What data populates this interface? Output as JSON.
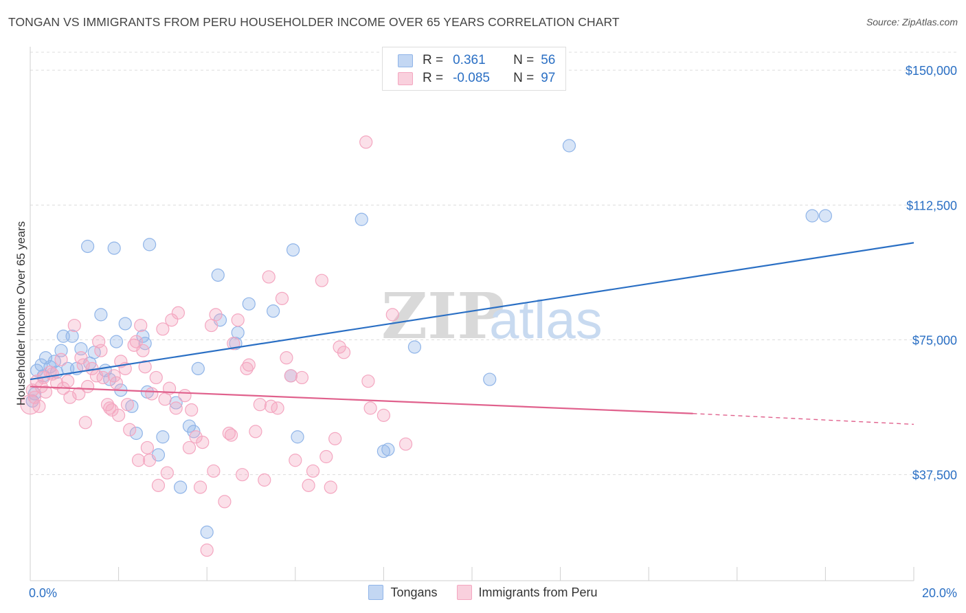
{
  "title": "TONGAN VS IMMIGRANTS FROM PERU HOUSEHOLDER INCOME OVER 65 YEARS CORRELATION CHART",
  "source": "Source: ZipAtlas.com",
  "watermark": {
    "zip": "ZIP",
    "atlas": "atlas"
  },
  "legend": {
    "rows": [
      {
        "r_label": "R =",
        "r_value": "0.361",
        "n_label": "N =",
        "n_value": "56",
        "color": "#8fb4e8"
      },
      {
        "r_label": "R =",
        "r_value": "-0.085",
        "n_label": "N =",
        "n_value": "97",
        "color": "#f4a6c0"
      }
    ]
  },
  "bottom_legend": [
    "Tongans",
    "Immigrants from Peru"
  ],
  "chart_data": {
    "type": "scatter",
    "xlabel": "",
    "ylabel": "Householder Income Over 65 years",
    "xlim": [
      0,
      20
    ],
    "ylim": [
      8000,
      155000
    ],
    "x_tick_labels": {
      "min": "0.0%",
      "max": "20.0%"
    },
    "y_ticks": [
      37500,
      75000,
      112500,
      150000
    ],
    "y_tick_labels": [
      "$37,500",
      "$75,000",
      "$112,500",
      "$150,000"
    ],
    "grid": true,
    "series": [
      {
        "name": "Tongans",
        "color": "#8fb4e8",
        "line_color": "#2a6fc4",
        "trend": {
          "x": [
            0,
            20
          ],
          "y": [
            64000,
            102000
          ]
        },
        "points": [
          [
            0.05,
            58000
          ],
          [
            0.15,
            66500
          ],
          [
            0.25,
            68000
          ],
          [
            0.35,
            70000
          ],
          [
            0.45,
            67500
          ],
          [
            0.55,
            69000
          ],
          [
            0.7,
            72000
          ],
          [
            0.75,
            76000
          ],
          [
            0.85,
            67000
          ],
          [
            0.95,
            76000
          ],
          [
            1.05,
            67000
          ],
          [
            1.15,
            72500
          ],
          [
            1.35,
            68500
          ],
          [
            1.45,
            71500
          ],
          [
            1.6,
            82000
          ],
          [
            1.7,
            66500
          ],
          [
            1.8,
            64000
          ],
          [
            1.95,
            74500
          ],
          [
            2.05,
            61000
          ],
          [
            2.15,
            79500
          ],
          [
            2.3,
            56500
          ],
          [
            2.4,
            49000
          ],
          [
            2.55,
            76000
          ],
          [
            2.6,
            74000
          ],
          [
            2.65,
            60500
          ],
          [
            2.9,
            43000
          ],
          [
            3.0,
            48000
          ],
          [
            3.3,
            57500
          ],
          [
            3.4,
            34000
          ],
          [
            3.6,
            51000
          ],
          [
            3.7,
            49500
          ],
          [
            3.8,
            67000
          ],
          [
            4.0,
            21500
          ],
          [
            4.25,
            93000
          ],
          [
            4.3,
            80500
          ],
          [
            4.65,
            74000
          ],
          [
            4.7,
            77000
          ],
          [
            4.95,
            85000
          ],
          [
            5.5,
            83000
          ],
          [
            5.9,
            65000
          ],
          [
            5.95,
            100000
          ],
          [
            6.05,
            48000
          ],
          [
            1.3,
            101000
          ],
          [
            1.9,
            100500
          ],
          [
            2.7,
            101500
          ],
          [
            7.5,
            108500
          ],
          [
            8.0,
            44000
          ],
          [
            8.1,
            44500
          ],
          [
            8.7,
            73000
          ],
          [
            10.4,
            64000
          ],
          [
            12.2,
            129000
          ],
          [
            17.7,
            109500
          ],
          [
            18.0,
            109500
          ],
          [
            0.1,
            60000
          ],
          [
            0.3,
            65000
          ],
          [
            0.6,
            66000
          ]
        ]
      },
      {
        "name": "Immigrants from Peru",
        "color": "#f4a6c0",
        "line_color": "#e0608c",
        "trend": {
          "x": [
            0,
            15
          ],
          "y": [
            62000,
            54500
          ]
        },
        "trend_dashed": {
          "x": [
            15,
            20
          ],
          "y": [
            54500,
            51500
          ]
        },
        "points": [
          [
            0.0,
            57000
          ],
          [
            0.05,
            61000
          ],
          [
            0.1,
            59000
          ],
          [
            0.15,
            63500
          ],
          [
            0.2,
            56500
          ],
          [
            0.25,
            62000
          ],
          [
            0.3,
            64500
          ],
          [
            0.35,
            60500
          ],
          [
            0.45,
            66000
          ],
          [
            0.5,
            65500
          ],
          [
            0.6,
            63000
          ],
          [
            0.7,
            69500
          ],
          [
            0.75,
            61500
          ],
          [
            0.85,
            63500
          ],
          [
            0.9,
            59000
          ],
          [
            1.0,
            79000
          ],
          [
            1.1,
            60000
          ],
          [
            1.15,
            70000
          ],
          [
            1.2,
            68000
          ],
          [
            1.25,
            52000
          ],
          [
            1.3,
            62000
          ],
          [
            1.4,
            67000
          ],
          [
            1.5,
            65000
          ],
          [
            1.55,
            74500
          ],
          [
            1.6,
            72000
          ],
          [
            1.65,
            64500
          ],
          [
            1.75,
            57000
          ],
          [
            1.8,
            56000
          ],
          [
            1.85,
            55500
          ],
          [
            1.9,
            65000
          ],
          [
            1.95,
            63000
          ],
          [
            2.0,
            54000
          ],
          [
            2.05,
            69000
          ],
          [
            2.15,
            67000
          ],
          [
            2.2,
            57000
          ],
          [
            2.25,
            50000
          ],
          [
            2.35,
            73500
          ],
          [
            2.4,
            74500
          ],
          [
            2.45,
            41500
          ],
          [
            2.5,
            79000
          ],
          [
            2.55,
            72000
          ],
          [
            2.6,
            67500
          ],
          [
            2.65,
            45000
          ],
          [
            2.7,
            41500
          ],
          [
            2.75,
            60000
          ],
          [
            2.85,
            64500
          ],
          [
            2.9,
            34500
          ],
          [
            3.0,
            78000
          ],
          [
            3.05,
            58500
          ],
          [
            3.1,
            38000
          ],
          [
            3.15,
            61500
          ],
          [
            3.2,
            80500
          ],
          [
            3.3,
            56000
          ],
          [
            3.35,
            82500
          ],
          [
            3.5,
            59500
          ],
          [
            3.6,
            45000
          ],
          [
            3.65,
            55500
          ],
          [
            3.75,
            48000
          ],
          [
            3.85,
            34000
          ],
          [
            3.9,
            46500
          ],
          [
            4.0,
            16500
          ],
          [
            4.1,
            79000
          ],
          [
            4.15,
            38500
          ],
          [
            4.2,
            82000
          ],
          [
            4.4,
            30000
          ],
          [
            4.5,
            49000
          ],
          [
            4.55,
            48500
          ],
          [
            4.6,
            74000
          ],
          [
            4.7,
            80500
          ],
          [
            4.8,
            37500
          ],
          [
            4.9,
            67000
          ],
          [
            4.95,
            68000
          ],
          [
            5.1,
            49500
          ],
          [
            5.2,
            57000
          ],
          [
            5.3,
            36000
          ],
          [
            5.4,
            92500
          ],
          [
            5.45,
            56500
          ],
          [
            5.6,
            56000
          ],
          [
            5.7,
            86500
          ],
          [
            5.8,
            70000
          ],
          [
            5.9,
            65000
          ],
          [
            6.0,
            41500
          ],
          [
            6.15,
            64500
          ],
          [
            6.3,
            34500
          ],
          [
            6.4,
            38500
          ],
          [
            6.6,
            91500
          ],
          [
            6.7,
            42500
          ],
          [
            6.8,
            34000
          ],
          [
            6.9,
            47500
          ],
          [
            7.0,
            73000
          ],
          [
            7.1,
            71500
          ],
          [
            7.6,
            130000
          ],
          [
            7.65,
            63500
          ],
          [
            7.7,
            56000
          ],
          [
            8.0,
            54000
          ],
          [
            8.2,
            82000
          ],
          [
            8.5,
            46000
          ]
        ]
      }
    ]
  }
}
